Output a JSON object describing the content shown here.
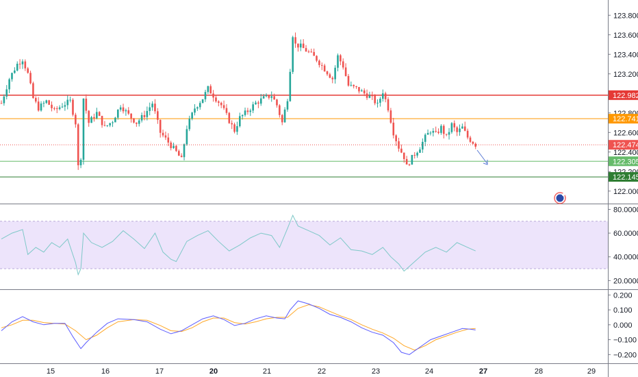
{
  "chart_data": {
    "type": "candlestick",
    "colors": {
      "up": "#26a69a",
      "down": "#ef5350",
      "rsi_line": "#7ec8c8",
      "rsi_band": "#ede4fb",
      "macd_line": "#5b5bff",
      "signal_line": "#ffa726",
      "level_red": "#e53935",
      "level_orange": "#ff9800",
      "level_green_light": "#66bb6a",
      "level_green_dark": "#2e7d32",
      "current_price": "#ef5350"
    },
    "x_axis": {
      "ticks": [
        "15",
        "16",
        "17",
        "20",
        "21",
        "22",
        "23",
        "24",
        "27",
        "28",
        "29"
      ],
      "bold_ticks": [
        "20",
        "27"
      ]
    },
    "price_panel": {
      "ylim": [
        121.9,
        123.9
      ],
      "ticks": [
        "123.800",
        "123.600",
        "123.400",
        "123.200",
        "122.800",
        "122.600",
        "122.400",
        "122.200",
        "122.000"
      ],
      "levels": [
        {
          "value": 122.982,
          "label": "122.982",
          "color": "#e53935"
        },
        {
          "value": 122.741,
          "label": "122.741",
          "color": "#ff9800"
        },
        {
          "value": 122.305,
          "label": "122.305",
          "color": "#66bb6a"
        },
        {
          "value": 122.145,
          "label": "122.145",
          "color": "#2e7d32"
        }
      ],
      "current_price": {
        "value": 122.474,
        "label": "122.474"
      },
      "candles_close_path": [
        [
          0,
          122.9
        ],
        [
          3,
          123.15
        ],
        [
          6,
          123.3
        ],
        [
          8,
          123.35
        ],
        [
          10,
          123.2
        ],
        [
          12,
          122.95
        ],
        [
          14,
          122.85
        ],
        [
          17,
          122.92
        ],
        [
          20,
          122.82
        ],
        [
          23,
          122.88
        ],
        [
          26,
          122.92
        ],
        [
          28,
          122.7
        ],
        [
          29,
          122.25
        ],
        [
          29.5,
          122.15
        ],
        [
          30,
          122.35
        ],
        [
          31,
          122.95
        ],
        [
          33,
          122.7
        ],
        [
          36,
          122.8
        ],
        [
          39,
          122.65
        ],
        [
          42,
          122.72
        ],
        [
          45,
          122.88
        ],
        [
          48,
          122.78
        ],
        [
          51,
          122.7
        ],
        [
          54,
          122.78
        ],
        [
          57,
          122.9
        ],
        [
          60,
          122.6
        ],
        [
          63,
          122.5
        ],
        [
          66,
          122.4
        ],
        [
          68,
          122.32
        ],
        [
          70,
          122.65
        ],
        [
          73,
          122.85
        ],
        [
          76,
          122.95
        ],
        [
          78,
          123.05
        ],
        [
          80,
          122.98
        ],
        [
          83,
          122.88
        ],
        [
          86,
          122.72
        ],
        [
          88,
          122.62
        ],
        [
          90,
          122.75
        ],
        [
          93,
          122.82
        ],
        [
          96,
          122.9
        ],
        [
          99,
          122.95
        ],
        [
          102,
          122.98
        ],
        [
          104,
          122.88
        ],
        [
          106,
          122.7
        ],
        [
          108,
          122.95
        ],
        [
          109,
          123.25
        ],
        [
          110,
          123.6
        ],
        [
          111,
          123.5
        ],
        [
          113,
          123.48
        ],
        [
          116,
          123.42
        ],
        [
          119,
          123.35
        ],
        [
          122,
          123.25
        ],
        [
          125,
          123.15
        ],
        [
          127,
          123.38
        ],
        [
          129,
          123.28
        ],
        [
          131,
          123.08
        ],
        [
          134,
          123.05
        ],
        [
          137,
          123.0
        ],
        [
          140,
          122.95
        ],
        [
          142,
          122.88
        ],
        [
          144,
          123.02
        ],
        [
          146,
          122.85
        ],
        [
          148,
          122.6
        ],
        [
          150,
          122.45
        ],
        [
          152,
          122.35
        ],
        [
          153,
          122.25
        ],
        [
          154,
          122.3
        ],
        [
          156,
          122.38
        ],
        [
          158,
          122.45
        ],
        [
          160,
          122.55
        ],
        [
          162,
          122.62
        ],
        [
          164,
          122.58
        ],
        [
          166,
          122.65
        ],
        [
          168,
          122.55
        ],
        [
          170,
          122.68
        ],
        [
          172,
          122.6
        ],
        [
          174,
          122.65
        ],
        [
          176,
          122.55
        ],
        [
          178,
          122.5
        ],
        [
          179,
          122.474
        ]
      ]
    },
    "rsi_panel": {
      "ylim": [
        15,
        82
      ],
      "band": [
        30,
        70
      ],
      "ticks": [
        "80.0000",
        "60.0000",
        "40.0000",
        "20.0000"
      ],
      "values": [
        [
          0,
          55
        ],
        [
          4,
          60
        ],
        [
          8,
          63
        ],
        [
          10,
          42
        ],
        [
          13,
          48
        ],
        [
          16,
          44
        ],
        [
          19,
          52
        ],
        [
          22,
          48
        ],
        [
          25,
          55
        ],
        [
          28,
          35
        ],
        [
          29,
          25
        ],
        [
          30,
          30
        ],
        [
          31,
          60
        ],
        [
          34,
          52
        ],
        [
          38,
          48
        ],
        [
          42,
          53
        ],
        [
          46,
          62
        ],
        [
          50,
          55
        ],
        [
          54,
          47
        ],
        [
          58,
          60
        ],
        [
          61,
          44
        ],
        [
          64,
          38
        ],
        [
          66,
          36
        ],
        [
          70,
          53
        ],
        [
          74,
          58
        ],
        [
          78,
          62
        ],
        [
          82,
          53
        ],
        [
          86,
          45
        ],
        [
          90,
          50
        ],
        [
          94,
          56
        ],
        [
          98,
          60
        ],
        [
          102,
          58
        ],
        [
          105,
          48
        ],
        [
          108,
          64
        ],
        [
          110,
          75
        ],
        [
          112,
          66
        ],
        [
          116,
          62
        ],
        [
          120,
          58
        ],
        [
          124,
          50
        ],
        [
          128,
          56
        ],
        [
          132,
          46
        ],
        [
          136,
          45
        ],
        [
          140,
          42
        ],
        [
          144,
          48
        ],
        [
          147,
          40
        ],
        [
          150,
          34
        ],
        [
          152,
          28
        ],
        [
          154,
          32
        ],
        [
          157,
          38
        ],
        [
          160,
          44
        ],
        [
          164,
          48
        ],
        [
          168,
          44
        ],
        [
          172,
          52
        ],
        [
          176,
          48
        ],
        [
          179,
          45
        ]
      ]
    },
    "macd_panel": {
      "ylim": [
        -0.24,
        0.22
      ],
      "ticks": [
        "0.200",
        "0.100",
        "0.000",
        "−0.100",
        "−0.200"
      ],
      "macd": [
        [
          0,
          -0.04
        ],
        [
          4,
          0.02
        ],
        [
          8,
          0.055
        ],
        [
          12,
          0.02
        ],
        [
          16,
          0.0
        ],
        [
          20,
          0.01
        ],
        [
          24,
          0.01
        ],
        [
          27,
          -0.08
        ],
        [
          30,
          -0.16
        ],
        [
          32,
          -0.12
        ],
        [
          36,
          -0.05
        ],
        [
          40,
          0.01
        ],
        [
          44,
          0.04
        ],
        [
          50,
          0.035
        ],
        [
          55,
          0.02
        ],
        [
          60,
          -0.03
        ],
        [
          64,
          -0.06
        ],
        [
          68,
          -0.04
        ],
        [
          72,
          0.0
        ],
        [
          76,
          0.04
        ],
        [
          80,
          0.06
        ],
        [
          84,
          0.035
        ],
        [
          88,
          -0.005
        ],
        [
          92,
          0.01
        ],
        [
          96,
          0.04
        ],
        [
          100,
          0.06
        ],
        [
          104,
          0.045
        ],
        [
          107,
          0.04
        ],
        [
          109,
          0.1
        ],
        [
          112,
          0.16
        ],
        [
          116,
          0.14
        ],
        [
          120,
          0.11
        ],
        [
          124,
          0.07
        ],
        [
          128,
          0.05
        ],
        [
          132,
          0.02
        ],
        [
          136,
          -0.02
        ],
        [
          140,
          -0.05
        ],
        [
          144,
          -0.07
        ],
        [
          148,
          -0.12
        ],
        [
          151,
          -0.185
        ],
        [
          154,
          -0.2
        ],
        [
          158,
          -0.15
        ],
        [
          162,
          -0.1
        ],
        [
          166,
          -0.075
        ],
        [
          170,
          -0.05
        ],
        [
          174,
          -0.025
        ],
        [
          177,
          -0.03
        ],
        [
          179,
          -0.035
        ]
      ],
      "signal": [
        [
          0,
          -0.02
        ],
        [
          4,
          0.0
        ],
        [
          8,
          0.03
        ],
        [
          12,
          0.03
        ],
        [
          16,
          0.015
        ],
        [
          20,
          0.01
        ],
        [
          24,
          0.005
        ],
        [
          28,
          -0.04
        ],
        [
          32,
          -0.1
        ],
        [
          36,
          -0.07
        ],
        [
          40,
          -0.02
        ],
        [
          44,
          0.02
        ],
        [
          50,
          0.035
        ],
        [
          55,
          0.03
        ],
        [
          60,
          -0.005
        ],
        [
          64,
          -0.04
        ],
        [
          68,
          -0.045
        ],
        [
          72,
          -0.02
        ],
        [
          76,
          0.02
        ],
        [
          80,
          0.045
        ],
        [
          84,
          0.045
        ],
        [
          88,
          0.015
        ],
        [
          92,
          0.005
        ],
        [
          96,
          0.02
        ],
        [
          100,
          0.04
        ],
        [
          104,
          0.05
        ],
        [
          108,
          0.05
        ],
        [
          112,
          0.11
        ],
        [
          116,
          0.135
        ],
        [
          120,
          0.12
        ],
        [
          124,
          0.09
        ],
        [
          128,
          0.06
        ],
        [
          132,
          0.035
        ],
        [
          136,
          0.0
        ],
        [
          140,
          -0.03
        ],
        [
          144,
          -0.055
        ],
        [
          148,
          -0.09
        ],
        [
          152,
          -0.14
        ],
        [
          156,
          -0.17
        ],
        [
          160,
          -0.14
        ],
        [
          164,
          -0.1
        ],
        [
          168,
          -0.075
        ],
        [
          172,
          -0.05
        ],
        [
          176,
          -0.03
        ],
        [
          179,
          -0.025
        ]
      ]
    }
  }
}
